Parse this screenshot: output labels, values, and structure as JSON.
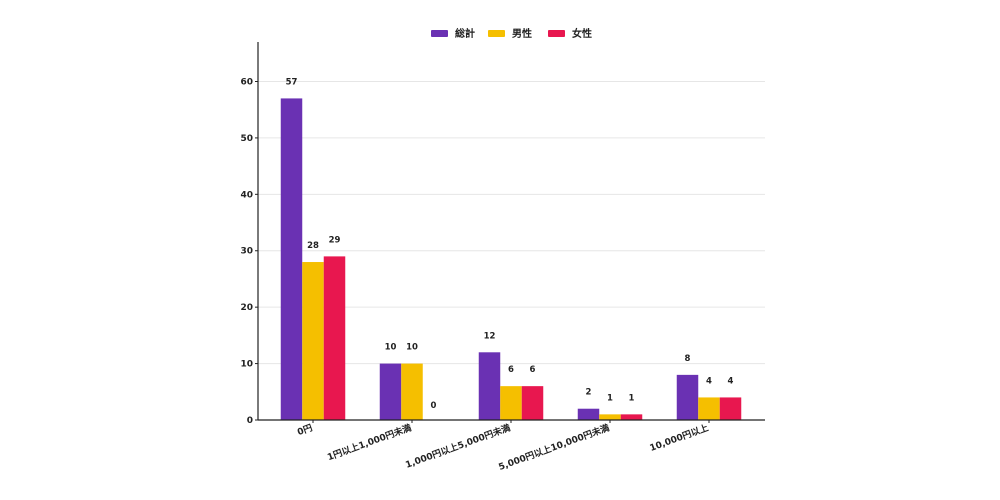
{
  "chart_data": {
    "type": "bar",
    "categories": [
      "0円",
      "1円以上1,000円未満",
      "1,000円以上5,000円未満",
      "5,000円以上10,000円未満",
      "10,000円以上"
    ],
    "series": [
      {
        "name": "総計",
        "color": "#6a31b3",
        "values": [
          57,
          10,
          12,
          2,
          8
        ]
      },
      {
        "name": "男性",
        "color": "#f5bf00",
        "values": [
          28,
          10,
          6,
          1,
          4
        ]
      },
      {
        "name": "女性",
        "color": "#e8174f",
        "values": [
          29,
          0,
          6,
          1,
          4
        ]
      }
    ],
    "yticks": [
      0,
      10,
      20,
      30,
      40,
      50,
      60
    ],
    "ylim": [
      0,
      67
    ],
    "grid": true,
    "legend_position": "top-center"
  }
}
